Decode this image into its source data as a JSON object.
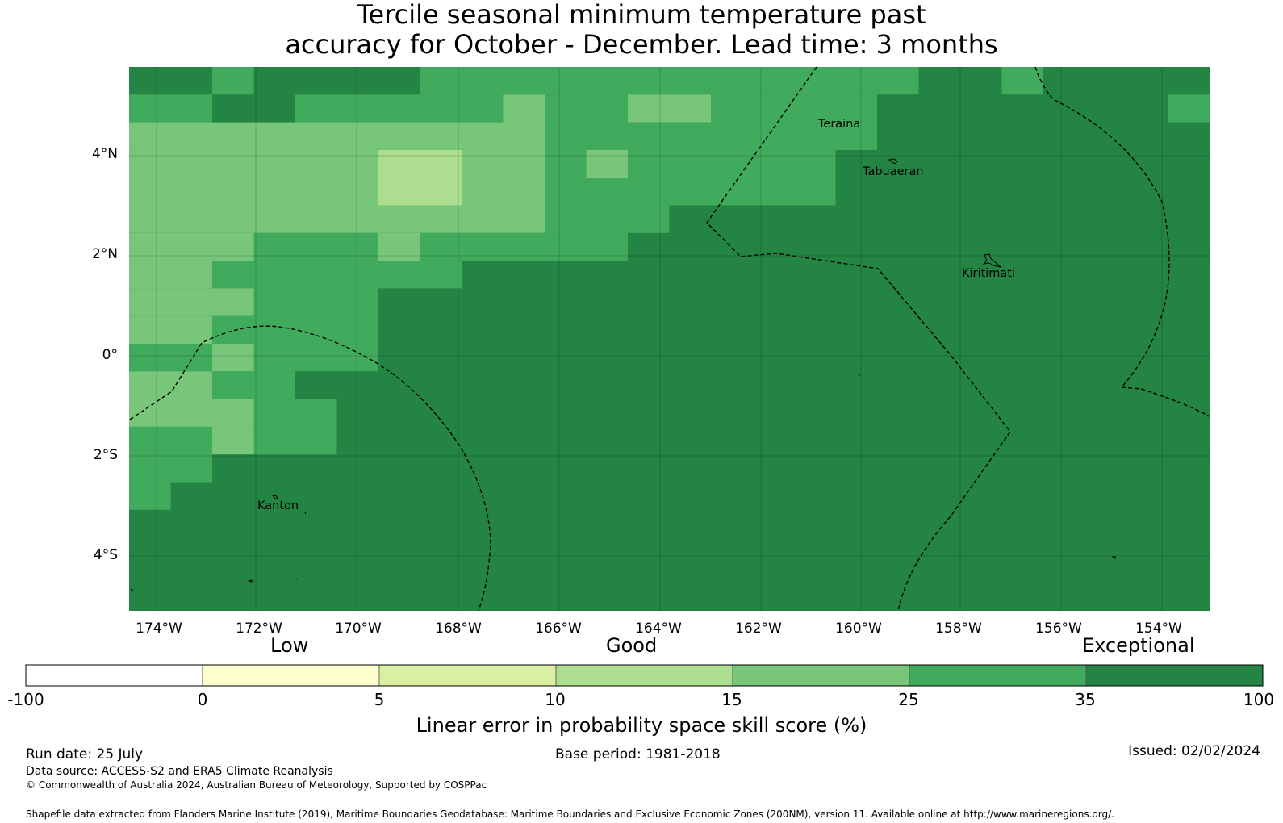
{
  "title": {
    "line1": "Tercile seasonal minimum temperature past",
    "line2": "accuracy for October - December. Lead time: 3 months"
  },
  "map": {
    "lat_labels": [
      "4°N",
      "2°N",
      "0°",
      "2°S",
      "4°S"
    ],
    "lon_labels": [
      "174°W",
      "172°W",
      "170°W",
      "168°W",
      "166°W",
      "164°W",
      "162°W",
      "160°W",
      "158°W",
      "156°W",
      "154°W"
    ],
    "places": [
      "Teraina",
      "Tabuaeran",
      "Kiritimati",
      "Kanton"
    ]
  },
  "legend": {
    "categories": [
      "Low",
      "Good",
      "Exceptional"
    ],
    "ticks": [
      "-100",
      "0",
      "5",
      "10",
      "15",
      "25",
      "35",
      "100"
    ],
    "colors": [
      "#ffffff",
      "#ffffcc",
      "#d9f0a3",
      "#addd8e",
      "#78c679",
      "#41ab5d",
      "#238443"
    ],
    "title": "Linear error in probability space skill score (%)"
  },
  "footer": {
    "run_date": "Run date: 25 July",
    "base_period": "Base period: 1981-2018",
    "issued": "Issued: 02/02/2024",
    "data_source": "Data source: ACCESS-S2 and ERA5 Climate Reanalysis",
    "copyright": "© Commonwealth of Australia 2024, Australian Bureau of Meteorology, Supported by COSPPac",
    "shapefile": "Shapefile data extracted from Flanders Marine Institute (2019), Maritime Boundaries Geodatabase: Maritime Boundaries and Exclusive Economic Zones (200NM), version 11. Available online at http://www.marineregions.org/."
  }
}
